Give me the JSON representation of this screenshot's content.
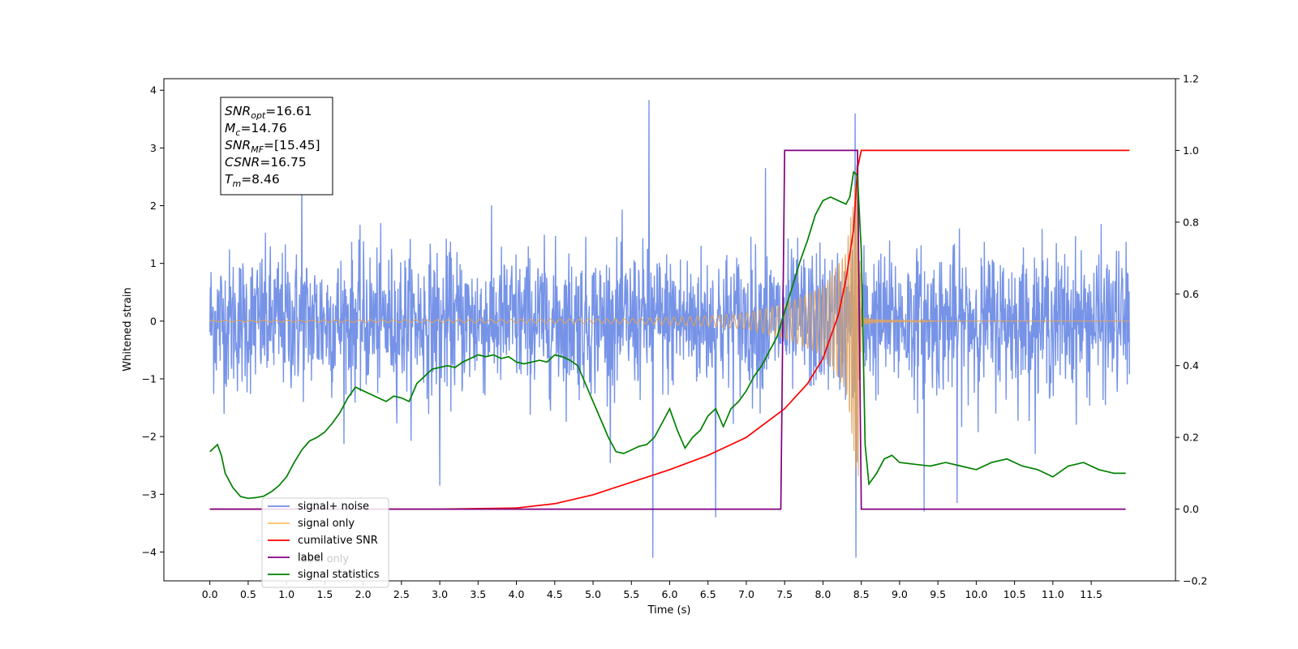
{
  "chart_data": {
    "type": "line",
    "title": "",
    "xlabel": "Time (s)",
    "ylabel": "Whitened strain",
    "y2label": "",
    "xlim": [
      -0.6,
      12.6
    ],
    "ylim": [
      -4.5,
      4.2
    ],
    "y2lim": [
      -0.2,
      1.2
    ],
    "x_ticks": [
      "0.0",
      "0.5",
      "1.0",
      "1.5",
      "2.0",
      "2.5",
      "3.0",
      "3.5",
      "4.0",
      "4.5",
      "5.0",
      "5.5",
      "6.0",
      "6.5",
      "7.0",
      "7.5",
      "8.0",
      "8.5",
      "9.0",
      "9.5",
      "10.0",
      "10.5",
      "11.0",
      "11.5"
    ],
    "y_ticks": [
      "-4",
      "-3",
      "-2",
      "-1",
      "0",
      "1",
      "2",
      "3",
      "4"
    ],
    "y2_ticks": [
      "-0.2",
      "0.0",
      "0.2",
      "0.4",
      "0.6",
      "0.8",
      "1.0",
      "1.2"
    ],
    "grid": false,
    "legend_position": "lower-left",
    "annotation": {
      "lines": [
        {
          "sym": "SNR",
          "sub": "opt",
          "value": "=16.61"
        },
        {
          "sym": "M",
          "sub": "c",
          "value": "=14.76"
        },
        {
          "sym": "SNR",
          "sub": "MF",
          "value": "=[15.45]"
        },
        {
          "sym": "CSNR",
          "sub": "",
          "value": "=16.75"
        },
        {
          "sym": "T",
          "sub": "m",
          "value": "=8.46"
        }
      ]
    },
    "legend": [
      {
        "label": "signal+ noise",
        "color": "#6f8de6"
      },
      {
        "label": "signal only",
        "color": "#ffbf5f"
      },
      {
        "label": "cumilative SNR",
        "color": "#ff0000"
      },
      {
        "label": "label",
        "color": "#800080"
      },
      {
        "label": "signal statistics",
        "color": "#008000"
      }
    ],
    "legend_hidden_text": "label only",
    "series": [
      {
        "name": "signal+ noise",
        "axis": "left",
        "color": "#6f8de6",
        "kind": "noise",
        "x_range": [
          0.0,
          12.0
        ],
        "sigma": 0.85,
        "notable_peaks": [
          [
            5.73,
            3.83
          ],
          [
            5.78,
            -4.1
          ],
          [
            8.42,
            3.6
          ],
          [
            8.43,
            -4.1
          ],
          [
            6.6,
            -3.4
          ],
          [
            9.32,
            -3.3
          ],
          [
            9.75,
            -3.15
          ],
          [
            3.0,
            -2.85
          ],
          [
            7.25,
            2.65
          ],
          [
            1.2,
            2.6
          ]
        ]
      },
      {
        "name": "signal only",
        "axis": "left",
        "color": "#e0a460",
        "kind": "chirp",
        "x_range": [
          0.0,
          12.0
        ],
        "merger_time": 8.46,
        "envelope": [
          [
            0.0,
            0.01
          ],
          [
            5.5,
            0.04
          ],
          [
            6.5,
            0.09
          ],
          [
            7.0,
            0.14
          ],
          [
            7.5,
            0.3
          ],
          [
            8.0,
            0.6
          ],
          [
            8.3,
            1.2
          ],
          [
            8.4,
            2.2
          ],
          [
            8.46,
            3.1
          ],
          [
            8.5,
            0.08
          ],
          [
            8.7,
            0.03
          ],
          [
            9.5,
            0.0
          ]
        ]
      },
      {
        "name": "cumilative SNR",
        "axis": "right",
        "color": "#ff0000",
        "x": [
          0.0,
          3.0,
          4.0,
          4.5,
          5.0,
          5.5,
          6.0,
          6.5,
          7.0,
          7.5,
          7.8,
          8.0,
          8.2,
          8.3,
          8.4,
          8.45,
          8.5,
          12.0
        ],
        "y": [
          0.0,
          0.0,
          0.003,
          0.015,
          0.04,
          0.075,
          0.11,
          0.15,
          0.2,
          0.28,
          0.35,
          0.42,
          0.54,
          0.64,
          0.78,
          0.95,
          1.0,
          1.0
        ]
      },
      {
        "name": "label",
        "axis": "right",
        "color": "#800080",
        "x": [
          0.0,
          7.45,
          7.5,
          8.45,
          8.5,
          11.95
        ],
        "y": [
          0.0,
          0.0,
          1.0,
          1.0,
          0.0,
          0.0
        ]
      },
      {
        "name": "signal statistics",
        "axis": "right",
        "color": "#008000",
        "x": [
          0.0,
          0.05,
          0.1,
          0.15,
          0.2,
          0.3,
          0.4,
          0.5,
          0.6,
          0.7,
          0.8,
          0.9,
          1.0,
          1.1,
          1.2,
          1.3,
          1.4,
          1.5,
          1.6,
          1.7,
          1.8,
          1.9,
          2.0,
          2.1,
          2.2,
          2.3,
          2.4,
          2.5,
          2.6,
          2.7,
          2.8,
          2.9,
          3.0,
          3.1,
          3.2,
          3.3,
          3.4,
          3.5,
          3.6,
          3.7,
          3.8,
          3.9,
          4.0,
          4.1,
          4.2,
          4.3,
          4.4,
          4.5,
          4.6,
          4.7,
          4.8,
          4.9,
          5.0,
          5.1,
          5.2,
          5.3,
          5.4,
          5.5,
          5.6,
          5.7,
          5.8,
          5.9,
          6.0,
          6.1,
          6.2,
          6.3,
          6.4,
          6.5,
          6.6,
          6.7,
          6.8,
          6.9,
          7.0,
          7.1,
          7.2,
          7.3,
          7.4,
          7.5,
          7.6,
          7.7,
          7.8,
          7.9,
          8.0,
          8.1,
          8.2,
          8.3,
          8.35,
          8.4,
          8.45,
          8.5,
          8.55,
          8.6,
          8.7,
          8.8,
          8.9,
          9.0,
          9.2,
          9.4,
          9.6,
          9.8,
          10.0,
          10.2,
          10.4,
          10.6,
          10.8,
          11.0,
          11.2,
          11.4,
          11.6,
          11.8,
          11.95
        ],
        "y": [
          0.16,
          0.17,
          0.18,
          0.15,
          0.1,
          0.06,
          0.035,
          0.03,
          0.032,
          0.036,
          0.048,
          0.065,
          0.09,
          0.13,
          0.165,
          0.19,
          0.2,
          0.215,
          0.24,
          0.27,
          0.31,
          0.34,
          0.33,
          0.32,
          0.31,
          0.3,
          0.315,
          0.31,
          0.3,
          0.35,
          0.37,
          0.39,
          0.395,
          0.4,
          0.395,
          0.41,
          0.42,
          0.43,
          0.425,
          0.43,
          0.42,
          0.425,
          0.41,
          0.405,
          0.41,
          0.415,
          0.41,
          0.43,
          0.425,
          0.415,
          0.4,
          0.35,
          0.3,
          0.25,
          0.2,
          0.16,
          0.155,
          0.165,
          0.175,
          0.18,
          0.2,
          0.24,
          0.28,
          0.22,
          0.17,
          0.2,
          0.22,
          0.26,
          0.28,
          0.23,
          0.28,
          0.3,
          0.33,
          0.37,
          0.4,
          0.44,
          0.48,
          0.55,
          0.62,
          0.69,
          0.75,
          0.82,
          0.86,
          0.87,
          0.86,
          0.85,
          0.87,
          0.94,
          0.93,
          0.72,
          0.18,
          0.07,
          0.1,
          0.14,
          0.15,
          0.13,
          0.125,
          0.12,
          0.13,
          0.12,
          0.11,
          0.13,
          0.14,
          0.12,
          0.11,
          0.09,
          0.12,
          0.13,
          0.11,
          0.1,
          0.1
        ]
      }
    ]
  }
}
